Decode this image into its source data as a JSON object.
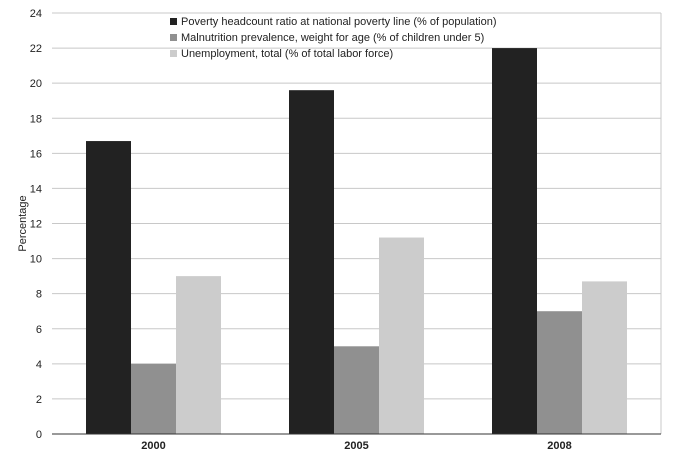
{
  "chart_data": {
    "type": "bar",
    "categories": [
      "2000",
      "2005",
      "2008"
    ],
    "series": [
      {
        "name": "Poverty headcount ratio at national poverty line (% of population)",
        "values": [
          16.7,
          19.6,
          22.0
        ],
        "color": "#222222"
      },
      {
        "name": "Malnutrition prevalence, weight for age (% of children under 5)",
        "values": [
          4.0,
          5.0,
          7.0
        ],
        "color": "#909090"
      },
      {
        "name": "Unemployment, total (% of total labor force)",
        "values": [
          9.0,
          11.2,
          8.7
        ],
        "color": "#cccccc"
      }
    ],
    "xlabel": "",
    "ylabel": "Percentage",
    "ylim": [
      0,
      24
    ],
    "yticks": [
      0,
      2,
      4,
      6,
      8,
      10,
      12,
      14,
      16,
      18,
      20,
      22,
      24
    ],
    "grid": true,
    "legend": "top-left"
  }
}
